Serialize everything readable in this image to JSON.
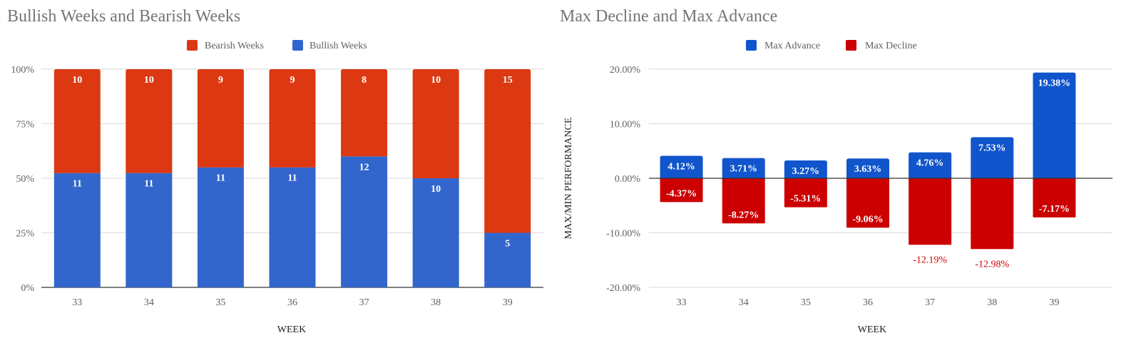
{
  "chart_data": [
    {
      "type": "bar",
      "stacked": "percent",
      "title": "Bullish Weeks and Bearish Weeks",
      "xlabel": "WEEK",
      "ylabel": "",
      "categories": [
        "33",
        "34",
        "35",
        "36",
        "37",
        "38",
        "39"
      ],
      "series": [
        {
          "name": "Bullish Weeks",
          "color": "#3366cc",
          "values": [
            11,
            11,
            11,
            11,
            12,
            10,
            5
          ]
        },
        {
          "name": "Bearish Weeks",
          "color": "#dc3912",
          "values": [
            10,
            10,
            9,
            9,
            8,
            10,
            15
          ]
        }
      ],
      "legend_order": [
        "Bearish Weeks",
        "Bullish Weeks"
      ],
      "legend_position": "top-right",
      "yticks": [
        "0%",
        "25%",
        "50%",
        "75%",
        "100%"
      ],
      "ylim": [
        0,
        100
      ],
      "grid": true
    },
    {
      "type": "bar",
      "stacked": "diverging",
      "title": "Max Decline and Max Advance",
      "xlabel": "WEEK",
      "ylabel": "MAX/MIN PERFORMANCE",
      "categories": [
        "33",
        "34",
        "35",
        "36",
        "37",
        "38",
        "39"
      ],
      "series": [
        {
          "name": "Max Advance",
          "color": "#1155cc",
          "values": [
            4.12,
            3.71,
            3.27,
            3.63,
            4.76,
            7.53,
            19.38
          ],
          "labels": [
            "4.12%",
            "3.71%",
            "3.27%",
            "3.63%",
            "4.76%",
            "7.53%",
            "19.38%"
          ]
        },
        {
          "name": "Max Decline",
          "color": "#cc0000",
          "values": [
            -4.37,
            -8.27,
            -5.31,
            -9.06,
            -12.19,
            -12.98,
            -7.17
          ],
          "labels": [
            "-4.37%",
            "-8.27%",
            "-5.31%",
            "-9.06%",
            "-12.19%",
            "-12.98%",
            "-7.17%"
          ]
        }
      ],
      "legend_order": [
        "Max Advance",
        "Max Decline"
      ],
      "legend_position": "top-right",
      "yticks": [
        "-20.00%",
        "-10.00%",
        "0.00%",
        "10.00%",
        "20.00%"
      ],
      "ytick_values": [
        -20,
        -10,
        0,
        10,
        20
      ],
      "ylim": [
        -20,
        20
      ],
      "grid": true
    }
  ]
}
